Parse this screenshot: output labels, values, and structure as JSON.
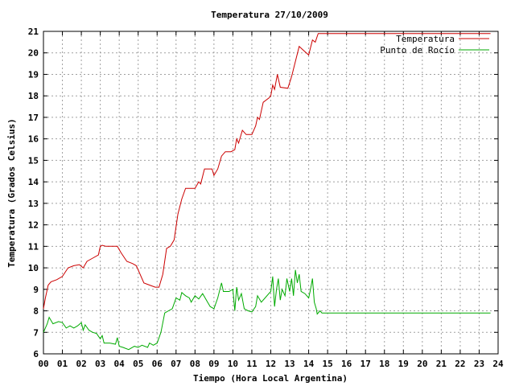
{
  "chart_data": {
    "type": "line",
    "title": "Temperatura 27/10/2009",
    "xlabel": "Tiempo (Hora Local Argentina)",
    "ylabel": "Temperatura (Grados Celsius)",
    "xlim": [
      0,
      24
    ],
    "ylim": [
      6,
      21
    ],
    "xticks": [
      "00",
      "01",
      "02",
      "03",
      "04",
      "05",
      "06",
      "07",
      "08",
      "09",
      "10",
      "11",
      "12",
      "13",
      "14",
      "15",
      "16",
      "17",
      "18",
      "19",
      "20",
      "21",
      "22",
      "23",
      "24"
    ],
    "yticks": [
      6,
      7,
      8,
      9,
      10,
      11,
      12,
      13,
      14,
      15,
      16,
      17,
      18,
      19,
      20,
      21
    ],
    "grid": true,
    "legend_position": "top-right",
    "series": [
      {
        "name": "Temperatura",
        "color": "#cc0000",
        "points": [
          [
            0.0,
            8.1
          ],
          [
            0.1,
            8.6
          ],
          [
            0.25,
            9.2
          ],
          [
            0.4,
            9.35
          ],
          [
            0.7,
            9.45
          ],
          [
            1.0,
            9.6
          ],
          [
            1.3,
            10.0
          ],
          [
            1.6,
            10.1
          ],
          [
            1.9,
            10.15
          ],
          [
            2.1,
            10.0
          ],
          [
            2.3,
            10.3
          ],
          [
            2.6,
            10.45
          ],
          [
            2.9,
            10.6
          ],
          [
            3.0,
            11.0
          ],
          [
            3.1,
            11.05
          ],
          [
            3.3,
            11.0
          ],
          [
            3.6,
            11.0
          ],
          [
            3.9,
            11.0
          ],
          [
            4.1,
            10.7
          ],
          [
            4.4,
            10.3
          ],
          [
            4.7,
            10.2
          ],
          [
            4.9,
            10.1
          ],
          [
            5.1,
            9.7
          ],
          [
            5.3,
            9.3
          ],
          [
            5.6,
            9.2
          ],
          [
            5.9,
            9.1
          ],
          [
            6.1,
            9.1
          ],
          [
            6.3,
            9.7
          ],
          [
            6.5,
            10.9
          ],
          [
            6.7,
            11.0
          ],
          [
            6.9,
            11.3
          ],
          [
            7.1,
            12.5
          ],
          [
            7.3,
            13.2
          ],
          [
            7.5,
            13.7
          ],
          [
            7.8,
            13.7
          ],
          [
            8.0,
            13.7
          ],
          [
            8.2,
            14.0
          ],
          [
            8.3,
            13.9
          ],
          [
            8.5,
            14.6
          ],
          [
            8.9,
            14.6
          ],
          [
            9.0,
            14.3
          ],
          [
            9.2,
            14.6
          ],
          [
            9.4,
            15.2
          ],
          [
            9.6,
            15.4
          ],
          [
            9.9,
            15.4
          ],
          [
            10.1,
            15.5
          ],
          [
            10.2,
            16.0
          ],
          [
            10.3,
            15.8
          ],
          [
            10.5,
            16.4
          ],
          [
            10.7,
            16.2
          ],
          [
            11.0,
            16.2
          ],
          [
            11.2,
            16.6
          ],
          [
            11.3,
            17.0
          ],
          [
            11.4,
            16.9
          ],
          [
            11.6,
            17.7
          ],
          [
            11.9,
            17.9
          ],
          [
            12.0,
            18.0
          ],
          [
            12.1,
            18.5
          ],
          [
            12.2,
            18.3
          ],
          [
            12.35,
            19.0
          ],
          [
            12.5,
            18.4
          ],
          [
            12.9,
            18.35
          ],
          [
            13.1,
            18.9
          ],
          [
            13.3,
            19.6
          ],
          [
            13.5,
            20.3
          ],
          [
            13.75,
            20.1
          ],
          [
            14.0,
            19.9
          ],
          [
            14.2,
            20.6
          ],
          [
            14.35,
            20.5
          ],
          [
            14.5,
            20.9
          ],
          [
            15.0,
            20.9
          ],
          [
            23.6,
            20.9
          ]
        ]
      },
      {
        "name": "Punto de Rocío",
        "color": "#00aa00",
        "points": [
          [
            0.0,
            7.0
          ],
          [
            0.2,
            7.4
          ],
          [
            0.3,
            7.7
          ],
          [
            0.5,
            7.4
          ],
          [
            0.8,
            7.5
          ],
          [
            1.0,
            7.45
          ],
          [
            1.2,
            7.2
          ],
          [
            1.4,
            7.3
          ],
          [
            1.6,
            7.2
          ],
          [
            1.8,
            7.3
          ],
          [
            2.0,
            7.45
          ],
          [
            2.1,
            7.1
          ],
          [
            2.2,
            7.35
          ],
          [
            2.4,
            7.1
          ],
          [
            2.6,
            7.0
          ],
          [
            2.8,
            6.95
          ],
          [
            3.0,
            6.7
          ],
          [
            3.1,
            6.85
          ],
          [
            3.2,
            6.5
          ],
          [
            3.5,
            6.5
          ],
          [
            3.8,
            6.45
          ],
          [
            3.9,
            6.75
          ],
          [
            4.0,
            6.35
          ],
          [
            4.2,
            6.3
          ],
          [
            4.5,
            6.2
          ],
          [
            4.8,
            6.35
          ],
          [
            5.0,
            6.3
          ],
          [
            5.2,
            6.4
          ],
          [
            5.5,
            6.3
          ],
          [
            5.6,
            6.5
          ],
          [
            5.8,
            6.4
          ],
          [
            6.0,
            6.5
          ],
          [
            6.2,
            7.0
          ],
          [
            6.4,
            7.9
          ],
          [
            6.6,
            8.0
          ],
          [
            6.8,
            8.1
          ],
          [
            7.0,
            8.6
          ],
          [
            7.2,
            8.5
          ],
          [
            7.3,
            8.85
          ],
          [
            7.5,
            8.7
          ],
          [
            7.7,
            8.6
          ],
          [
            7.8,
            8.4
          ],
          [
            8.0,
            8.7
          ],
          [
            8.2,
            8.55
          ],
          [
            8.4,
            8.8
          ],
          [
            8.6,
            8.5
          ],
          [
            8.8,
            8.2
          ],
          [
            9.0,
            8.1
          ],
          [
            9.2,
            8.6
          ],
          [
            9.4,
            9.3
          ],
          [
            9.5,
            8.9
          ],
          [
            9.8,
            8.9
          ],
          [
            10.0,
            9.0
          ],
          [
            10.1,
            8.0
          ],
          [
            10.2,
            9.1
          ],
          [
            10.3,
            8.5
          ],
          [
            10.45,
            8.8
          ],
          [
            10.6,
            8.1
          ],
          [
            10.8,
            8.0
          ],
          [
            11.0,
            7.95
          ],
          [
            11.2,
            8.2
          ],
          [
            11.3,
            8.7
          ],
          [
            11.5,
            8.4
          ],
          [
            11.7,
            8.6
          ],
          [
            11.9,
            8.8
          ],
          [
            12.0,
            8.9
          ],
          [
            12.1,
            9.6
          ],
          [
            12.2,
            8.2
          ],
          [
            12.3,
            9.0
          ],
          [
            12.4,
            9.5
          ],
          [
            12.5,
            8.5
          ],
          [
            12.6,
            9.0
          ],
          [
            12.75,
            8.7
          ],
          [
            12.85,
            9.5
          ],
          [
            13.0,
            8.9
          ],
          [
            13.1,
            9.5
          ],
          [
            13.2,
            8.7
          ],
          [
            13.3,
            9.9
          ],
          [
            13.4,
            9.3
          ],
          [
            13.5,
            9.7
          ],
          [
            13.6,
            8.9
          ],
          [
            13.8,
            8.8
          ],
          [
            14.0,
            8.6
          ],
          [
            14.1,
            9.0
          ],
          [
            14.2,
            9.5
          ],
          [
            14.3,
            8.4
          ],
          [
            14.4,
            8.1
          ],
          [
            14.45,
            7.85
          ],
          [
            14.6,
            8.0
          ],
          [
            14.7,
            7.9
          ],
          [
            15.0,
            7.9
          ],
          [
            23.6,
            7.9
          ]
        ]
      }
    ]
  }
}
